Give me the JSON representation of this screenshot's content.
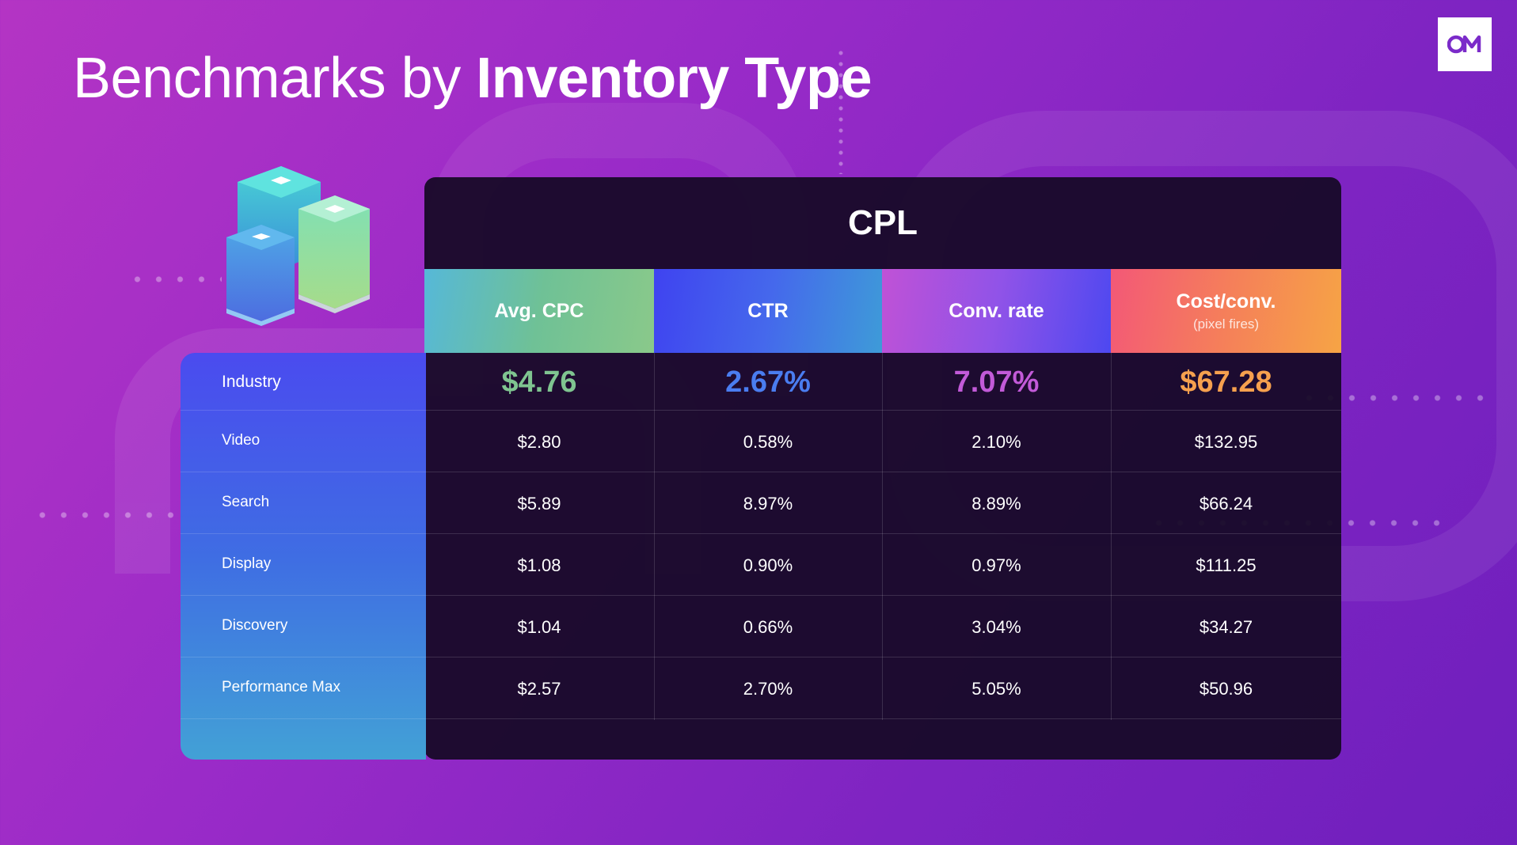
{
  "title": {
    "light": "Benchmarks by",
    "bold": "Inventory Type"
  },
  "logo": {
    "text": "OM"
  },
  "table": {
    "group_header": "CPL",
    "columns": [
      {
        "label": "Avg. CPC",
        "sub": ""
      },
      {
        "label": "CTR",
        "sub": ""
      },
      {
        "label": "Conv. rate",
        "sub": ""
      },
      {
        "label": "Cost/conv.",
        "sub": "(pixel fires)"
      }
    ],
    "highlight_colors": [
      "#7fc490",
      "#4a7df0",
      "#c25ad8",
      "#f5a04e"
    ],
    "rows": [
      {
        "label": "Industry",
        "values": [
          "$4.76",
          "2.67%",
          "7.07%",
          "$67.28"
        ]
      },
      {
        "label": "Video",
        "values": [
          "$2.80",
          "0.58%",
          "2.10%",
          "$132.95"
        ]
      },
      {
        "label": "Search",
        "values": [
          "$5.89",
          "8.97%",
          "8.89%",
          "$66.24"
        ]
      },
      {
        "label": "Display",
        "values": [
          "$1.08",
          "0.90%",
          "0.97%",
          "$111.25"
        ]
      },
      {
        "label": "Discovery",
        "values": [
          "$1.04",
          "0.66%",
          "3.04%",
          "$34.27"
        ]
      },
      {
        "label": "Performance Max",
        "values": [
          "$2.57",
          "2.70%",
          "5.05%",
          "$50.96"
        ]
      }
    ]
  }
}
